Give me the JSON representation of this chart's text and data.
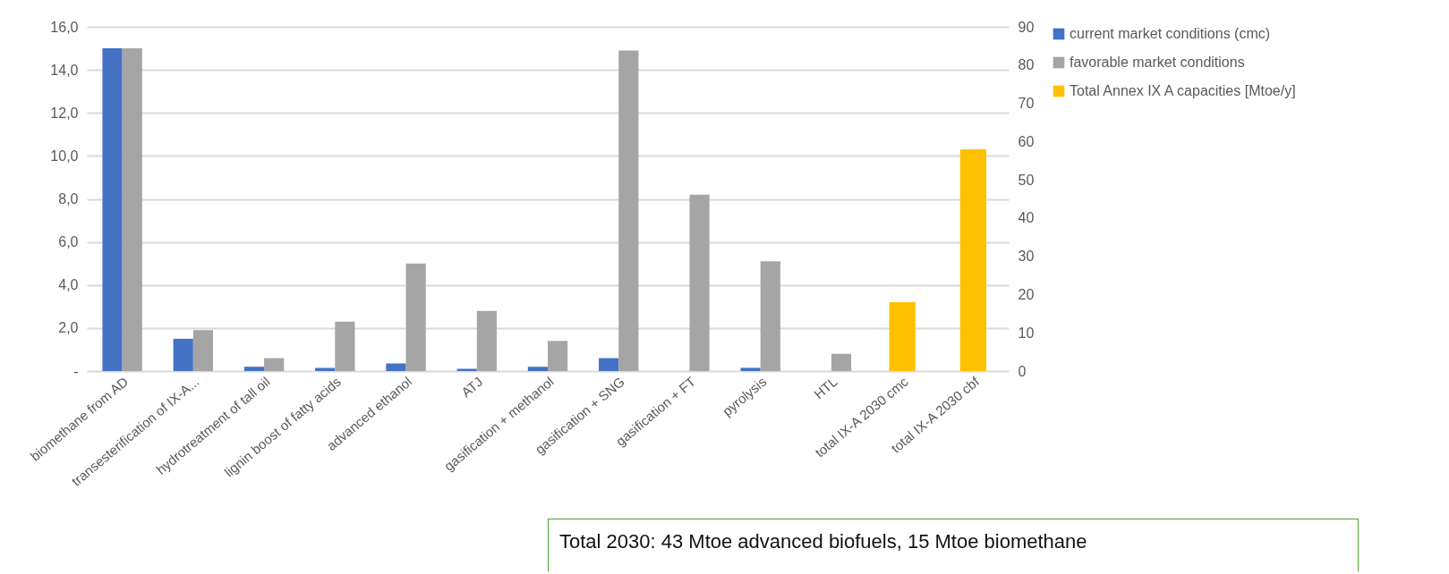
{
  "chart_data": {
    "type": "bar",
    "categories": [
      "biomethane from AD",
      "transesterification of IX-A...",
      "hydrotreatment of tall oil",
      "lignin boost of fatty acids",
      "advanced ethanol",
      "ATJ",
      "gasification + methanol",
      "gasification + SNG",
      "gasification + FT",
      "pyrolysis",
      "HTL",
      "total IX-A 2030 cmc",
      "total IX-A 2030 cbf"
    ],
    "series": [
      {
        "name": "current market conditions (cmc)",
        "color": "#4472c4",
        "values": [
          15.0,
          1.5,
          0.2,
          0.15,
          0.35,
          0.1,
          0.2,
          0.6,
          null,
          0.15,
          null,
          null,
          null
        ]
      },
      {
        "name": "favorable market conditions",
        "color": "#a5a5a5",
        "values": [
          15.0,
          1.9,
          0.6,
          2.3,
          5.0,
          2.8,
          1.4,
          14.9,
          8.2,
          5.1,
          0.8,
          null,
          null
        ]
      },
      {
        "name": "Total Annex IX A capacities [Mtoe/y]",
        "color": "#ffc000",
        "axis": "y2",
        "values": [
          null,
          null,
          null,
          null,
          null,
          null,
          null,
          null,
          null,
          null,
          null,
          18,
          58
        ]
      }
    ],
    "ylim": [
      0,
      16
    ],
    "yticks": [
      {
        "value": 0,
        "label": "-"
      },
      {
        "value": 2,
        "label": "2,0"
      },
      {
        "value": 4,
        "label": "4,0"
      },
      {
        "value": 6,
        "label": "6,0"
      },
      {
        "value": 8,
        "label": "8,0"
      },
      {
        "value": 10,
        "label": "10,0"
      },
      {
        "value": 12,
        "label": "12,0"
      },
      {
        "value": 14,
        "label": "14,0"
      },
      {
        "value": 16,
        "label": "16,0"
      }
    ],
    "y2lim": [
      0,
      90
    ],
    "y2ticks": [
      0,
      10,
      20,
      30,
      40,
      50,
      60,
      70,
      80,
      90
    ],
    "grid": "y",
    "legend": "right",
    "annotations": [
      "Total 2030: 43 Mtoe advanced biofuels, 15 Mtoe biomethane"
    ]
  }
}
